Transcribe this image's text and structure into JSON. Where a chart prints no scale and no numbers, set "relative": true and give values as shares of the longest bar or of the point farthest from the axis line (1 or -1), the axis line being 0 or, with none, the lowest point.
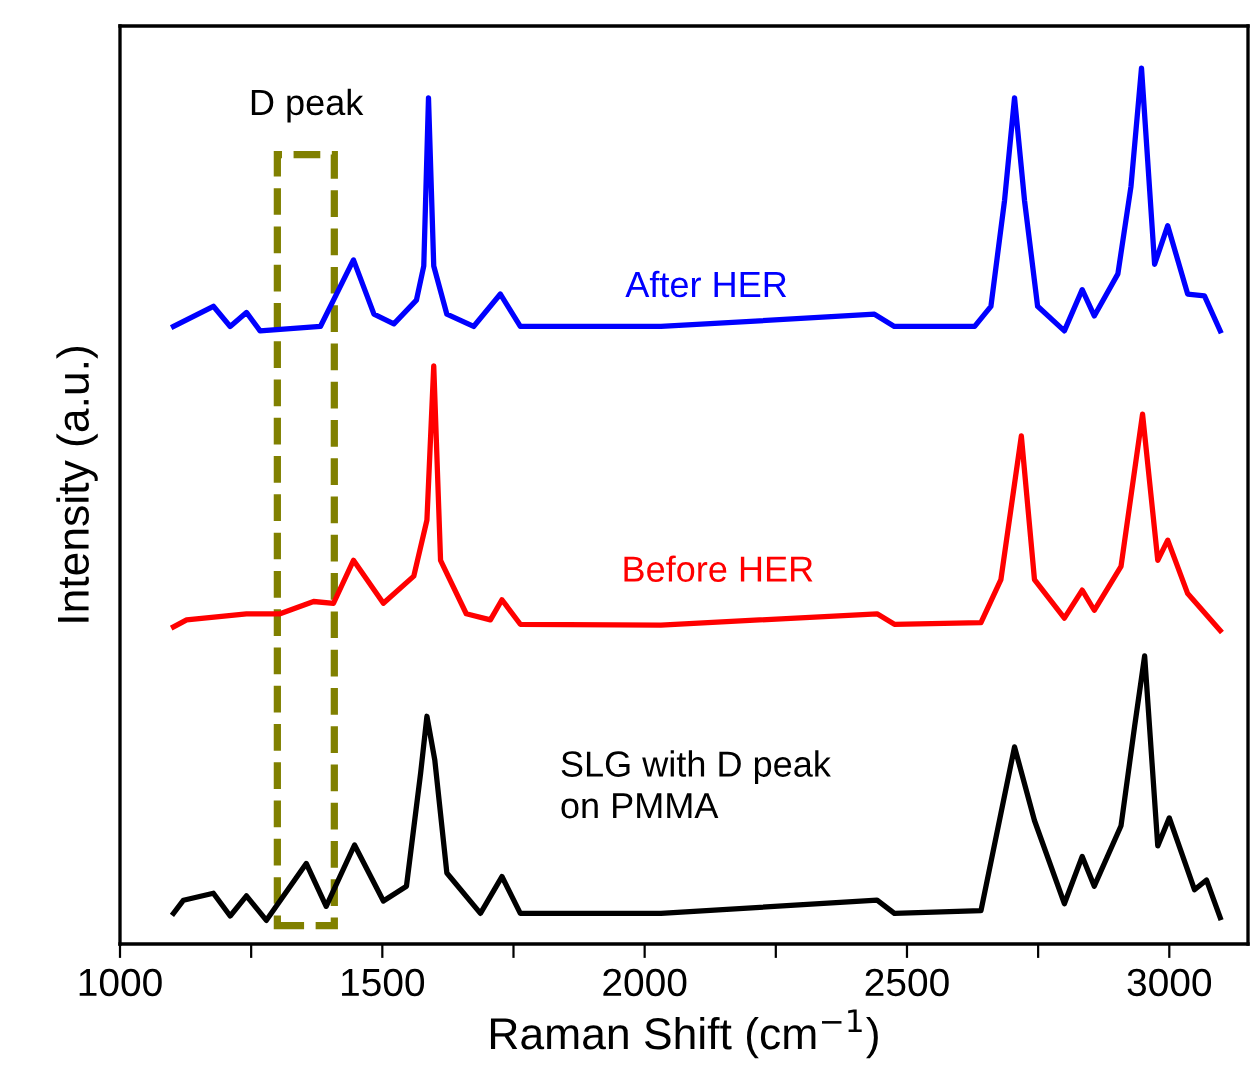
{
  "chart_data": {
    "type": "line",
    "relative": true,
    "xlabel": "Raman Shift (cm$^{−1}$)",
    "ylabel": "Intensity (a.u.)",
    "xlim": [
      1000,
      3150
    ],
    "xticks": [
      1000,
      {
        "value": 1250,
        "label": null
      },
      1500,
      {
        "value": 1750,
        "label": null
      },
      2000,
      {
        "value": 2250,
        "label": null
      },
      2500,
      {
        "value": 2750,
        "label": null
      },
      3000
    ],
    "tick_labels": "x",
    "grid": false,
    "marker": "none",
    "line_style": "solid",
    "annotations": [
      "D peak"
    ],
    "series": [
      {
        "name": "After HER",
        "color": "#0000ff",
        "x": [
          1102,
          1178,
          1210,
          1241,
          1267,
          1382,
          1445,
          1484,
          1522,
          1565,
          1579,
          1588,
          1598,
          1623,
          1674,
          1725,
          1763,
          2031,
          2438,
          2476,
          2629,
          2660,
          2686,
          2705,
          2724,
          2749,
          2800,
          2834,
          2857,
          2902,
          2927,
          2947,
          2972,
          2997,
          3035,
          3067,
          3097
        ],
        "values": [
          0.705,
          0.728,
          0.705,
          0.721,
          0.7,
          0.705,
          0.781,
          0.719,
          0.708,
          0.735,
          0.774,
          0.966,
          0.774,
          0.719,
          0.705,
          0.742,
          0.705,
          0.705,
          0.719,
          0.705,
          0.705,
          0.728,
          0.849,
          0.966,
          0.849,
          0.728,
          0.7,
          0.747,
          0.717,
          0.765,
          0.865,
          1,
          0.776,
          0.82,
          0.742,
          0.74,
          0.7
        ]
      },
      {
        "name": "Before HER",
        "color": "#ff0000",
        "x": [
          1102,
          1127,
          1241,
          1305,
          1369,
          1407,
          1445,
          1502,
          1560,
          1585,
          1598,
          1611,
          1660,
          1706,
          1728,
          1763,
          2031,
          2443,
          2476,
          2641,
          2679,
          2718,
          2743,
          2800,
          2834,
          2857,
          2908,
          2949,
          2978,
          2997,
          3035,
          3097
        ],
        "values": [
          0.362,
          0.37,
          0.377,
          0.377,
          0.391,
          0.389,
          0.438,
          0.389,
          0.42,
          0.484,
          0.66,
          0.438,
          0.377,
          0.37,
          0.393,
          0.365,
          0.364,
          0.377,
          0.365,
          0.367,
          0.416,
          0.58,
          0.416,
          0.372,
          0.404,
          0.381,
          0.431,
          0.605,
          0.438,
          0.461,
          0.4,
          0.358
        ]
      },
      {
        "name": "SLG with D peak\non PMMA",
        "color": "#000000",
        "x": [
          1102,
          1121,
          1178,
          1210,
          1241,
          1279,
          1355,
          1393,
          1447,
          1502,
          1546,
          1573,
          1585,
          1600,
          1623,
          1687,
          1728,
          1763,
          2031,
          2443,
          2476,
          2641,
          2679,
          2705,
          2743,
          2800,
          2834,
          2857,
          2908,
          2934,
          2953,
          2978,
          3000,
          3048,
          3071,
          3097
        ],
        "values": [
          0.035,
          0.05,
          0.058,
          0.032,
          0.055,
          0.027,
          0.092,
          0.043,
          0.113,
          0.049,
          0.066,
          0.195,
          0.26,
          0.21,
          0.081,
          0.035,
          0.077,
          0.035,
          0.035,
          0.05,
          0.035,
          0.038,
          0.149,
          0.225,
          0.141,
          0.046,
          0.1,
          0.066,
          0.135,
          0.249,
          0.329,
          0.112,
          0.144,
          0.062,
          0.073,
          0.03
        ]
      }
    ]
  }
}
